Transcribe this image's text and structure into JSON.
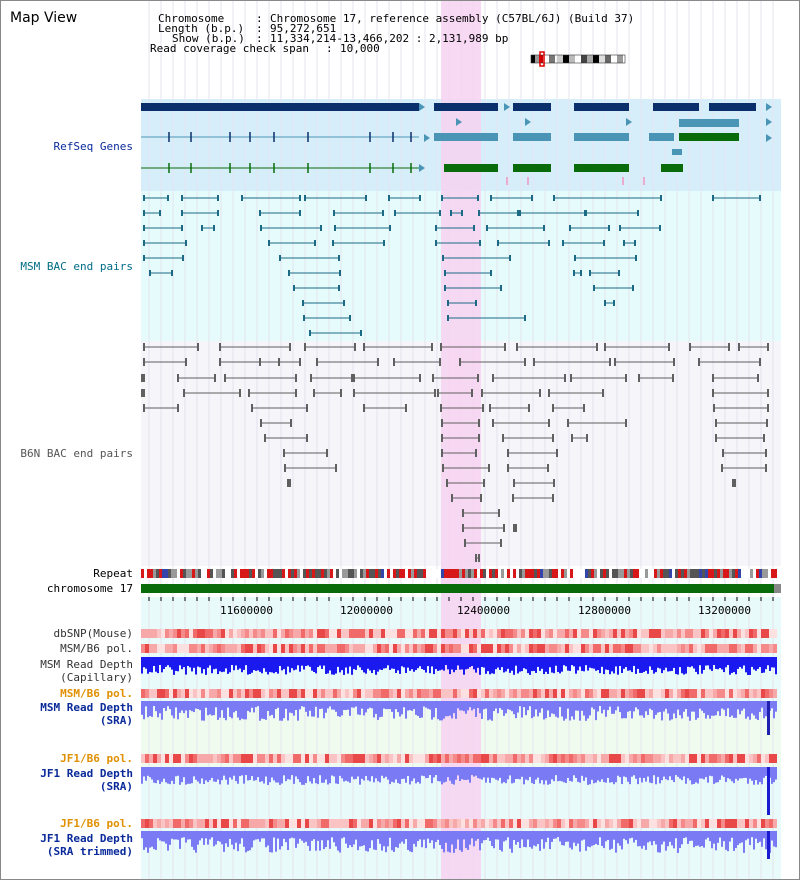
{
  "page": {
    "title": "Map View"
  },
  "info": {
    "chromosome_label": "Chromosome",
    "chromosome_value": "Chromosome 17, reference assembly (C57BL/6J) (Build 37)",
    "length_label": "Length (b.p.)",
    "length_value": "95,272,651",
    "show_label": "Show (b.p.)",
    "show_value": "11,334,214-13,466,202 : 2,131,989 bp",
    "coverage_label": "Read coverage check span",
    "coverage_value": "10,000"
  },
  "tracks": {
    "refseq": "RefSeq Genes",
    "msm_bac": "MSM BAC end pairs",
    "b6n_bac": "B6N BAC end pairs",
    "repeat": "Repeat",
    "chromosome": "chromosome 17",
    "dbsnp": "dbSNP(Mouse)",
    "msm_b6_pol": "MSM/B6 pol.",
    "msm_read_depth_cap_1": "MSM Read Depth",
    "msm_read_depth_cap_2": "(Capillary)",
    "msm_b6_pol_sra": "MSM/B6 pol.",
    "msm_read_depth_sra_1": "MSM Read Depth",
    "msm_read_depth_sra_2": "(SRA)",
    "jf1_b6_pol": "JF1/B6 pol.",
    "jf1_read_depth_1": "JF1 Read Depth",
    "jf1_read_depth_2": "(SRA)",
    "jf1_b6_pol_2": "JF1/B6 pol.",
    "jf1_read_depth_trim_1": "JF1 Read Depth",
    "jf1_read_depth_trim_2": "(SRA trimmed)"
  },
  "axis": {
    "ticks": [
      {
        "label": "11600000"
      },
      {
        "label": "12000000"
      },
      {
        "label": "12400000"
      },
      {
        "label": "12800000"
      },
      {
        "label": "13200000"
      }
    ]
  },
  "colors": {
    "refseq_bg": "#d6eefa",
    "bac_bg": "#e6fbfb",
    "highlight": "#f7d2f1",
    "navy": "#0b2f6b",
    "steel": "#4a95b5",
    "green": "#0a6b0a",
    "bac_line": "#1c6a85",
    "b6n_line": "#606060",
    "depth_blue": "#1a1af0",
    "depth_light": "#7a7af5",
    "chrom_green": "#0a6b0a",
    "label_blue": "#0a2a9a",
    "label_orange": "#e09000",
    "label_teal": "#006c86"
  }
}
